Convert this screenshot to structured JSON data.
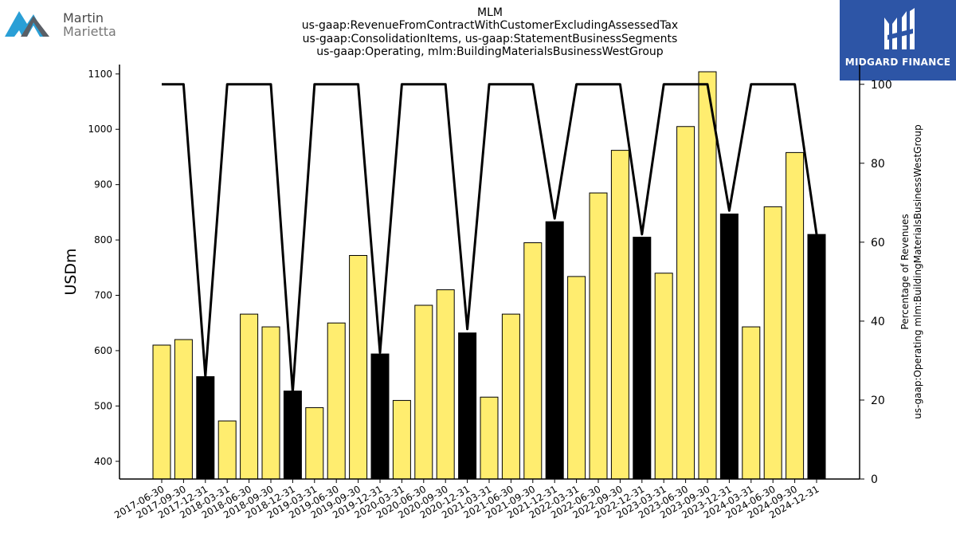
{
  "brand_left": {
    "line1": "Martin",
    "line2": "Marietta"
  },
  "brand_right": {
    "name": "MIDGARD FINANCE"
  },
  "colors": {
    "bar_highlight": "#ffed6f",
    "bar_q4": "#000000",
    "line": "#000000",
    "logo_blue": "#2d55a6"
  },
  "chart_data": {
    "type": "bar",
    "title_lines": [
      "MLM",
      "us-gaap:RevenueFromContractWithCustomerExcludingAssessedTax",
      "us-gaap:ConsolidationItems, us-gaap:StatementBusinessSegments",
      "us-gaap:Operating, mlm:BuildingMaterialsBusinessWestGroup"
    ],
    "ylabel": "USDm",
    "ylabel_right_lines": [
      "Percentage of Revenues",
      "us-gaap:Operating mlm:BuildingMaterialsBusinessWestGroup"
    ],
    "ylim": [
      368,
      1117
    ],
    "ylim_right": [
      0,
      105
    ],
    "yticks": [
      400,
      500,
      600,
      700,
      800,
      900,
      1000,
      1100
    ],
    "yticks_right": [
      0,
      20,
      40,
      60,
      80,
      100
    ],
    "categories": [
      "2017-06-30",
      "2017-09-30",
      "2017-12-31",
      "2018-03-31",
      "2018-06-30",
      "2018-09-30",
      "2018-12-31",
      "2019-03-31",
      "2019-06-30",
      "2019-09-30",
      "2019-12-31",
      "2020-03-31",
      "2020-06-30",
      "2020-09-30",
      "2020-12-31",
      "2021-03-31",
      "2021-06-30",
      "2021-09-30",
      "2021-12-31",
      "2022-03-31",
      "2022-06-30",
      "2022-09-30",
      "2022-12-31",
      "2023-03-31",
      "2023-06-30",
      "2023-09-30",
      "2023-12-31",
      "2024-03-31",
      "2024-06-30",
      "2024-09-30",
      "2024-12-31"
    ],
    "series": [
      {
        "values": [
          610,
          620,
          553,
          473,
          666,
          643,
          527,
          497,
          650,
          772,
          594,
          510,
          682,
          710,
          632,
          516,
          666,
          795,
          833,
          734,
          885,
          962,
          805,
          740,
          1005,
          1104,
          847,
          643,
          860,
          958,
          810
        ]
      },
      {
        "axis": "right",
        "type": "line",
        "values": [
          100,
          100,
          26,
          100,
          100,
          100,
          22,
          100,
          100,
          100,
          32,
          100,
          100,
          100,
          38,
          100,
          100,
          100,
          66,
          100,
          100,
          100,
          62,
          100,
          100,
          100,
          68,
          100,
          100,
          100,
          62
        ]
      }
    ],
    "q4_highlight_black": true,
    "grid": false
  }
}
